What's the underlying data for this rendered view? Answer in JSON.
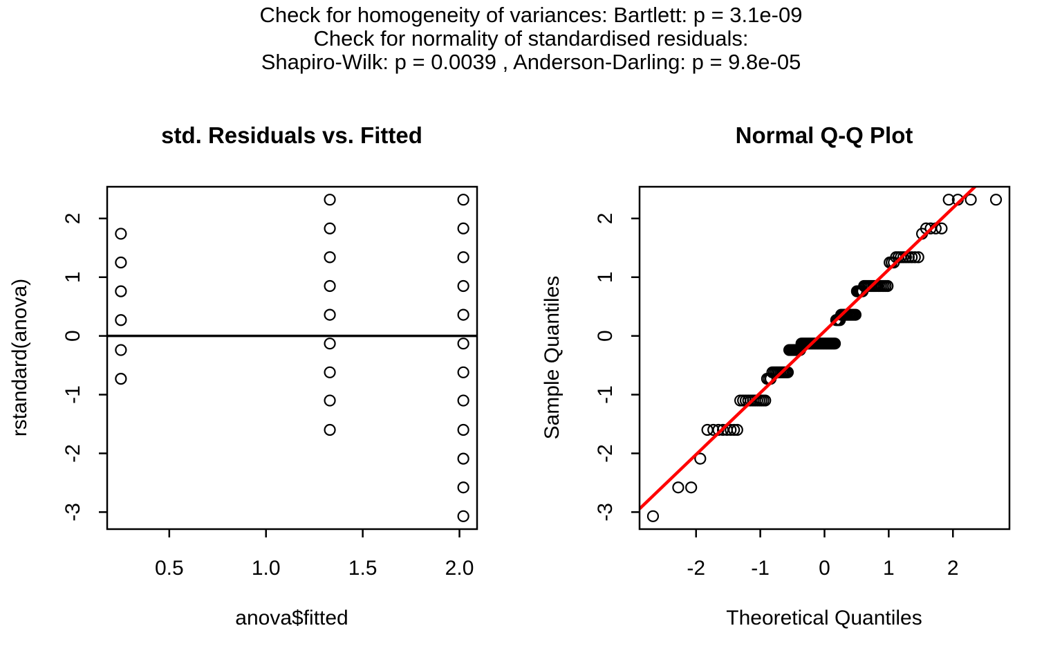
{
  "header": {
    "line1": "Check for homogeneity of variances: Bartlett: p =  3.1e-09",
    "line2": "Check for normality of standardised residuals:",
    "line3": "Shapiro-Wilk: p =  0.0039 , Anderson-Darling: p =  9.8e-05"
  },
  "colors": {
    "points": "#000000",
    "axis": "#000000",
    "zero_line": "#000000",
    "qq_line": "#FF0000",
    "background": "#FFFFFF"
  },
  "chart_data": [
    {
      "type": "scatter",
      "title": "std. Residuals vs. Fitted",
      "xlabel": "anova$fitted",
      "ylabel": "rstandard(anova)",
      "xlim": [
        0.179,
        2.091
      ],
      "ylim": [
        -3.29,
        2.54
      ],
      "xticks": [
        0.5,
        1.0,
        1.5,
        2.0
      ],
      "xtick_labels": [
        "0.5",
        "1.0",
        "1.5",
        "2.0"
      ],
      "yticks": [
        2,
        1,
        0,
        -1,
        -2,
        -3
      ],
      "ytick_labels": [
        "2",
        "1",
        "0",
        "-1",
        "-2",
        "-3"
      ],
      "grid": false,
      "hline_y": 0,
      "columns": [
        {
          "x": 0.25,
          "ys": [
            1.74,
            1.25,
            0.76,
            0.27,
            -0.24,
            -0.73
          ]
        },
        {
          "x": 1.33,
          "ys": [
            2.32,
            1.83,
            1.34,
            0.85,
            0.36,
            -0.13,
            -0.62,
            -1.1,
            -1.6
          ]
        },
        {
          "x": 2.02,
          "ys": [
            2.32,
            1.83,
            1.34,
            0.85,
            0.36,
            -0.13,
            -0.62,
            -1.1,
            -1.6,
            -2.09,
            -2.58,
            -3.07
          ]
        }
      ]
    },
    {
      "type": "scatter",
      "title": "Normal Q-Q Plot",
      "xlabel": "Theoretical Quantiles",
      "ylabel": "Sample Quantiles",
      "xlim": [
        -2.88,
        2.88
      ],
      "ylim": [
        -3.29,
        2.54
      ],
      "xticks": [
        -2,
        -1,
        0,
        1,
        2
      ],
      "xtick_labels": [
        "-2",
        "-1",
        "0",
        "1",
        "2"
      ],
      "yticks": [
        2,
        1,
        0,
        -1,
        -2,
        -3
      ],
      "ytick_labels": [
        "2",
        "1",
        "0",
        "-1",
        "-2",
        "-3"
      ],
      "grid": false,
      "n_points": 132,
      "quantile_rows": [
        {
          "y": -3.07,
          "count": 1
        },
        {
          "y": -2.58,
          "count": 2
        },
        {
          "y": -2.09,
          "count": 1
        },
        {
          "y": -1.6,
          "count": 8
        },
        {
          "y": -1.1,
          "count": 12
        },
        {
          "y": -0.73,
          "count": 3
        },
        {
          "y": -0.62,
          "count": 11
        },
        {
          "y": -0.24,
          "count": 9
        },
        {
          "y": -0.13,
          "count": 28
        },
        {
          "y": 0.27,
          "count": 4
        },
        {
          "y": 0.36,
          "count": 12
        },
        {
          "y": 0.76,
          "count": 5
        },
        {
          "y": 0.85,
          "count": 15
        },
        {
          "y": 1.25,
          "count": 3
        },
        {
          "y": 1.34,
          "count": 9
        },
        {
          "y": 1.74,
          "count": 1
        },
        {
          "y": 1.83,
          "count": 4
        },
        {
          "y": 2.32,
          "count": 4
        }
      ],
      "qq_line": {
        "slope": 1.05,
        "intercept": 0.08,
        "color": "#FF0000"
      }
    }
  ]
}
